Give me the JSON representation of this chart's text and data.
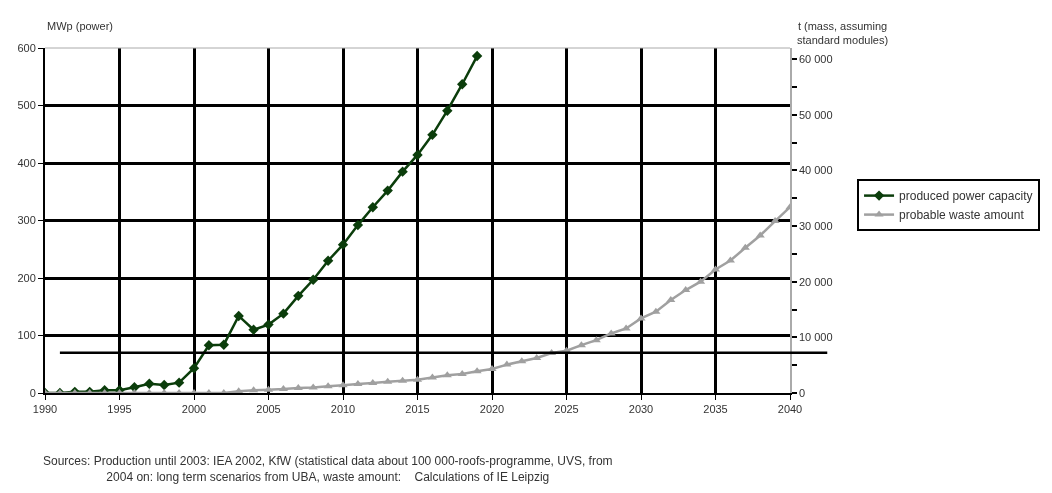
{
  "chart_data": {
    "type": "line",
    "ylabel": "MWp (power)",
    "y2label": "t (mass, assuming standard modules)",
    "annotations": [
      "Sources: Production until 2003: IEA 2002, KfW (statistical data about 100 000-roofs-programme, UVS, from\n2004 on: long term scenarios from UBA, waste amount:    Calculations of IE Leipzig"
    ],
    "series": [
      {
        "name": "produced power capacity",
        "color": "#0b3d0b",
        "marker": "diamond",
        "x": [
          1990,
          1991,
          1992,
          1993,
          1994,
          1995,
          1996,
          1997,
          1998,
          1999,
          2000,
          2001,
          2002,
          2003,
          2004,
          2005,
          2006,
          2007,
          2008,
          2009,
          2010,
          2011,
          2012,
          2013,
          2014,
          2015,
          2016,
          2017,
          2018,
          2019
        ],
        "values": [
          0,
          0,
          2,
          2,
          5,
          5,
          10,
          16,
          14,
          18,
          43,
          83,
          84,
          134,
          110,
          119,
          138,
          169,
          197,
          230,
          258,
          292,
          323,
          352,
          385,
          414,
          449,
          491,
          537,
          586
        ]
      },
      {
        "name": "probable waste amount",
        "color": "#a0a0a0",
        "marker": "triangle",
        "axis": "y2",
        "x": [
          1990,
          1991,
          1992,
          1993,
          1994,
          1995,
          1996,
          1997,
          1998,
          1999,
          2000,
          2001,
          2002,
          2003,
          2004,
          2005,
          2006,
          2007,
          2008,
          2009,
          2010,
          2011,
          2012,
          2013,
          2014,
          2015,
          2016,
          2017,
          2018,
          2019,
          2020,
          2021,
          2022,
          2023,
          2024,
          2025,
          2026,
          2027,
          2028,
          2029,
          2030,
          2031,
          2032,
          2033,
          2034,
          2035,
          2036,
          2037,
          2038,
          2039,
          2040
        ],
        "values": [
          0,
          0,
          0,
          0,
          0,
          0,
          0,
          0,
          0,
          0,
          0,
          0,
          0,
          300,
          500,
          600,
          700,
          900,
          1000,
          1200,
          1400,
          1600,
          1800,
          2000,
          2200,
          2400,
          2800,
          3200,
          3400,
          3900,
          4300,
          5100,
          5700,
          6300,
          7200,
          7600,
          8600,
          9500,
          10700,
          11600,
          13400,
          14600,
          16700,
          18500,
          20000,
          22200,
          23800,
          26100,
          28300,
          30900,
          33400
        ]
      }
    ],
    "xlim": [
      1990,
      2040
    ],
    "xticks": [
      1990,
      1995,
      2000,
      2005,
      2010,
      2015,
      2020,
      2025,
      2030,
      2035,
      2040
    ],
    "ylim": [
      0,
      600
    ],
    "yticks": [
      0,
      100,
      200,
      300,
      400,
      500,
      600
    ],
    "y2lim": [
      0,
      62000
    ],
    "y2ticks": [
      {
        "value": 0,
        "label": "0"
      },
      {
        "value": 5000,
        "label": null
      },
      {
        "value": 10000,
        "label": "10 000"
      },
      {
        "value": 15000,
        "label": null
      },
      {
        "value": 20000,
        "label": "20 000"
      },
      {
        "value": 25000,
        "label": null
      },
      {
        "value": 30000,
        "label": "30 000"
      },
      {
        "value": 35000,
        "label": null
      },
      {
        "value": 40000,
        "label": "40 000"
      },
      {
        "value": 45000,
        "label": null
      },
      {
        "value": 50000,
        "label": "50 000"
      },
      {
        "value": 55000,
        "label": null
      },
      {
        "value": 60000,
        "label": "60 000"
      }
    ],
    "ref_lines": [
      {
        "axis": "y",
        "value": 70,
        "color": "#000000"
      }
    ],
    "grid": true,
    "legend": "right",
    "line_style": "solid"
  }
}
